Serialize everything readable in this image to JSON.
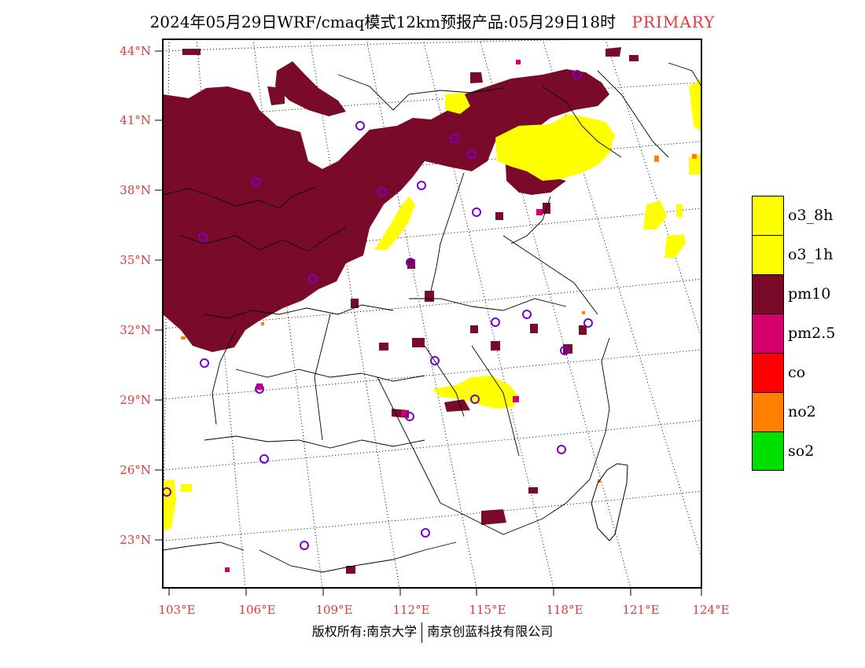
{
  "title": {
    "text": "2024年05月29日WRF/cmaq模式12km预报产品:05月29日18时",
    "tag": "PRIMARY"
  },
  "map": {
    "lat_labels": [
      "44°N",
      "41°N",
      "38°N",
      "35°N",
      "32°N",
      "29°N",
      "26°N",
      "23°N"
    ],
    "lon_labels": [
      "103°E",
      "106°E",
      "109°E",
      "112°E",
      "115°E",
      "118°E",
      "121°E",
      "124°E"
    ],
    "colors": {
      "pm10": "#7a0a2a",
      "o3": "#ffff00",
      "pm25": "#d4006e",
      "no2": "#ff8000",
      "station": "#7a00d0",
      "label": "#e03a3a"
    }
  },
  "legend": [
    {
      "label": "o3_8h",
      "color": "#ffff00"
    },
    {
      "label": "o3_1h",
      "color": "#ffff00"
    },
    {
      "label": "pm10",
      "color": "#7a0a2a"
    },
    {
      "label": "pm2.5",
      "color": "#d4006e"
    },
    {
      "label": "co",
      "color": "#ff0000"
    },
    {
      "label": "no2",
      "color": "#ff8000"
    },
    {
      "label": "so2",
      "color": "#00e000"
    }
  ],
  "footer": {
    "left": "版权所有:南京大学",
    "right": "南京创蓝科技有限公司"
  }
}
